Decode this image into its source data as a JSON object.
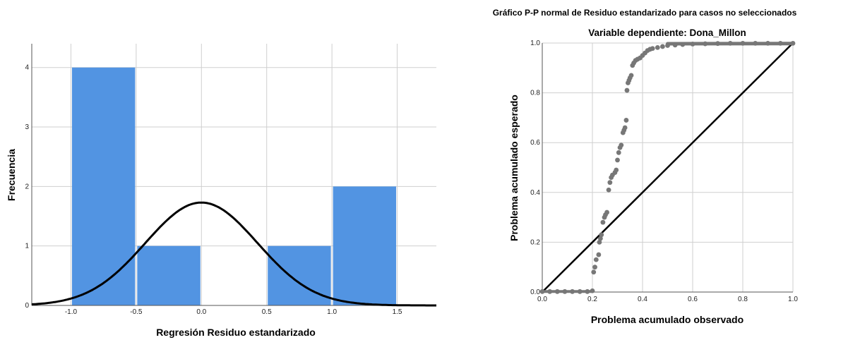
{
  "chart_data": [
    {
      "type": "bar",
      "title": "",
      "xlabel": "Regresión Residuo estandarizado",
      "ylabel": "Frecuencia",
      "xlim": [
        -1.3,
        1.8
      ],
      "ylim": [
        0,
        4.4
      ],
      "bins": [
        {
          "x0": -1.0,
          "x1": -0.5,
          "value": 4
        },
        {
          "x0": -0.5,
          "x1": 0.0,
          "value": 1
        },
        {
          "x0": 0.0,
          "x1": 0.5,
          "value": 0
        },
        {
          "x0": 0.5,
          "x1": 1.0,
          "value": 1
        },
        {
          "x0": 1.0,
          "x1": 1.5,
          "value": 2
        }
      ],
      "bar_color": "#5294e2",
      "curve": {
        "type": "normal",
        "mean": 0.0,
        "sd": 0.43,
        "scale": 1.86,
        "color": "#000000"
      },
      "x_ticks": [
        -1.0,
        -0.5,
        0.0,
        0.5,
        1.0,
        1.5
      ],
      "x_tick_labels": [
        "-1.0",
        "-0.5",
        "0.0",
        "0.5",
        "1.0",
        "1.5"
      ],
      "y_ticks": [
        0,
        1,
        2,
        3,
        4
      ],
      "y_tick_labels": [
        "0",
        "1",
        "2",
        "3",
        "4"
      ],
      "grid": true
    },
    {
      "type": "scatter",
      "title": "Gráfico P-P normal de Residuo estandarizado para casos no seleccionados",
      "subtitle": "Variable dependiente: Dona_Millon",
      "xlabel": "Problema acumulado observado",
      "ylabel": "Problema acumulado esperado",
      "xlim": [
        0,
        1
      ],
      "ylim": [
        0,
        1
      ],
      "x_ticks": [
        0,
        0.2,
        0.4,
        0.6,
        0.8,
        1.0
      ],
      "x_tick_labels": [
        "0.0",
        "0.2",
        "0.4",
        "0.6",
        "0.8",
        "1.0"
      ],
      "y_ticks": [
        0,
        0.2,
        0.4,
        0.6,
        0.8,
        1.0
      ],
      "y_tick_labels": [
        "0.0",
        "0.2",
        "0.4",
        "0.6",
        "0.8",
        "1.0"
      ],
      "point_color": "#777777",
      "reference_line": {
        "from": [
          0,
          0
        ],
        "to": [
          1,
          1
        ],
        "color": "#000000"
      },
      "grid": true,
      "points": [
        [
          0.0,
          0.002
        ],
        [
          0.03,
          0.002
        ],
        [
          0.06,
          0.002
        ],
        [
          0.09,
          0.002
        ],
        [
          0.12,
          0.002
        ],
        [
          0.15,
          0.002
        ],
        [
          0.18,
          0.002
        ],
        [
          0.2,
          0.005
        ],
        [
          0.205,
          0.08
        ],
        [
          0.21,
          0.1
        ],
        [
          0.215,
          0.13
        ],
        [
          0.225,
          0.15
        ],
        [
          0.228,
          0.2
        ],
        [
          0.232,
          0.215
        ],
        [
          0.236,
          0.23
        ],
        [
          0.242,
          0.28
        ],
        [
          0.248,
          0.3
        ],
        [
          0.252,
          0.31
        ],
        [
          0.258,
          0.32
        ],
        [
          0.265,
          0.41
        ],
        [
          0.27,
          0.44
        ],
        [
          0.275,
          0.46
        ],
        [
          0.28,
          0.47
        ],
        [
          0.29,
          0.48
        ],
        [
          0.295,
          0.49
        ],
        [
          0.3,
          0.53
        ],
        [
          0.305,
          0.56
        ],
        [
          0.31,
          0.58
        ],
        [
          0.315,
          0.59
        ],
        [
          0.322,
          0.64
        ],
        [
          0.326,
          0.65
        ],
        [
          0.33,
          0.66
        ],
        [
          0.335,
          0.69
        ],
        [
          0.338,
          0.81
        ],
        [
          0.342,
          0.84
        ],
        [
          0.346,
          0.85
        ],
        [
          0.35,
          0.86
        ],
        [
          0.355,
          0.87
        ],
        [
          0.36,
          0.91
        ],
        [
          0.365,
          0.92
        ],
        [
          0.372,
          0.93
        ],
        [
          0.38,
          0.935
        ],
        [
          0.39,
          0.94
        ],
        [
          0.4,
          0.95
        ],
        [
          0.41,
          0.96
        ],
        [
          0.42,
          0.97
        ],
        [
          0.43,
          0.975
        ],
        [
          0.44,
          0.978
        ],
        [
          0.46,
          0.982
        ],
        [
          0.48,
          0.986
        ],
        [
          0.5,
          0.99
        ],
        [
          0.53,
          0.992
        ],
        [
          0.56,
          0.994
        ],
        [
          0.6,
          0.996
        ],
        [
          0.65,
          0.997
        ],
        [
          0.7,
          0.998
        ],
        [
          0.75,
          0.999
        ],
        [
          0.8,
          0.999
        ],
        [
          0.85,
          0.999
        ],
        [
          0.9,
          0.999
        ],
        [
          0.95,
          0.999
        ],
        [
          1.0,
          0.999
        ]
      ]
    }
  ]
}
